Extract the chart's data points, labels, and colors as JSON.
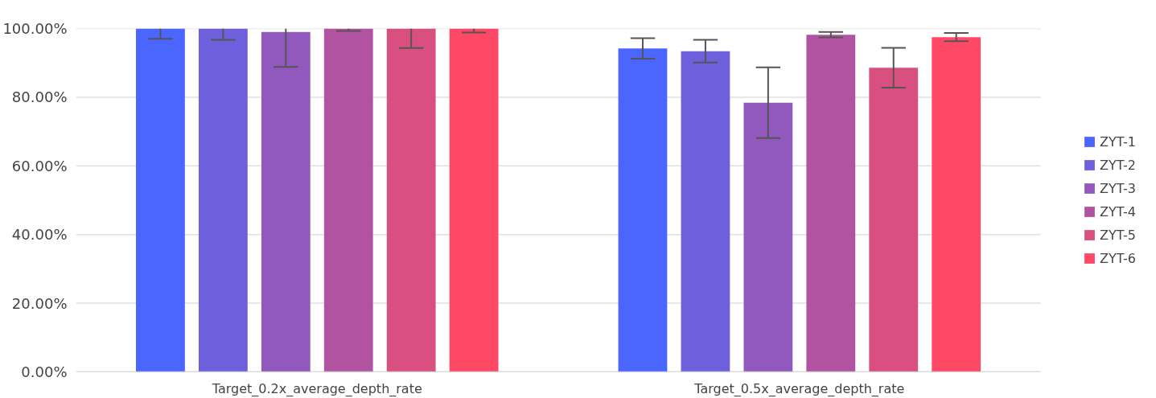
{
  "chart_data": {
    "type": "bar",
    "categories": [
      "Target_0.2x_average_depth_rate",
      "Target_0.5x_average_depth_rate"
    ],
    "series": [
      {
        "name": "ZYT-1",
        "color": "#4a66ff",
        "values": [
          100,
          94.2
        ],
        "errors": [
          [
            97.0,
            100
          ],
          3
        ]
      },
      {
        "name": "ZYT-2",
        "color": "#6e5fdc",
        "values": [
          100,
          93.4
        ],
        "errors": [
          [
            96.7,
            100
          ],
          3.3
        ]
      },
      {
        "name": "ZYT-3",
        "color": "#9159bd",
        "values": [
          99.0,
          78.4
        ],
        "errors": [
          [
            88.8,
            100
          ],
          10.3
        ]
      },
      {
        "name": "ZYT-4",
        "color": "#b253a1",
        "values": [
          100,
          98.2
        ],
        "errors": [
          [
            99.3,
            100
          ],
          0.8
        ]
      },
      {
        "name": "ZYT-5",
        "color": "#d94f80",
        "values": [
          100,
          88.6
        ],
        "errors": [
          [
            94.3,
            100
          ],
          5.8
        ]
      },
      {
        "name": "ZYT-6",
        "color": "#ff4866",
        "values": [
          100,
          97.5
        ],
        "errors": [
          [
            98.8,
            100
          ],
          1.2
        ]
      }
    ],
    "ylim": [
      0,
      100
    ],
    "yticks": [
      {
        "value": 0,
        "label": "0.00%"
      },
      {
        "value": 20,
        "label": "20.00%"
      },
      {
        "value": 40,
        "label": "40.00%"
      },
      {
        "value": 60,
        "label": "60.00%"
      },
      {
        "value": 80,
        "label": "80.00%"
      },
      {
        "value": 100,
        "label": "100.00%"
      }
    ],
    "grid": "y",
    "legend": "right"
  }
}
